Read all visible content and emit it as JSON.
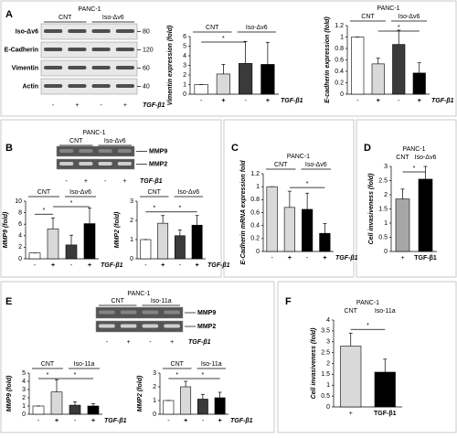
{
  "panel_labels": [
    "A",
    "B",
    "C",
    "D",
    "E",
    "F"
  ],
  "blots": [
    {
      "title": "PANC-1",
      "groups": [
        "CNT",
        "Iso-Δv6"
      ],
      "rows": [
        "Iso-Δv6",
        "E-Cadherin",
        "Vimentin",
        "Actin"
      ],
      "markers": [
        "80",
        "120",
        "60",
        "40"
      ],
      "lanes": [
        "-",
        "+",
        "-",
        "+"
      ],
      "treatment": "TGF-β1"
    },
    {
      "title": "PANC-1",
      "groups": [
        "CNT",
        "Iso-Δv6"
      ],
      "rows": [
        "MMP9",
        "MMP2"
      ],
      "lanes": [
        "-",
        "+",
        "-",
        "+"
      ],
      "treatment": "TGF-β1"
    },
    {
      "title": "PANC-1",
      "groups": [
        "CNT",
        "Iso-11a"
      ],
      "rows": [
        "MMP9",
        "MMP2"
      ],
      "lanes": [
        "-",
        "+",
        "-",
        "+"
      ],
      "treatment": "TGF-β1"
    }
  ],
  "chart_data": [
    {
      "type": "bar",
      "ylabel": "Vimentin expression (fold)",
      "groups": [
        "CNT",
        "Iso-Δv6"
      ],
      "categories": [
        "-",
        "+",
        "-",
        "+"
      ],
      "x_label": "TGF-β1",
      "annotations": [
        "*"
      ],
      "colors": [
        "#ffffff",
        "#d9d9d9",
        "#3a3a3a",
        "#000000"
      ],
      "series": [
        {
          "values": [
            1,
            2.1,
            3.2,
            3.1
          ],
          "errors": [
            0,
            1.0,
            2.3,
            2.3
          ]
        }
      ],
      "ylim": [
        0,
        6
      ],
      "yticks": [
        0,
        1,
        2,
        3,
        4,
        5,
        6
      ]
    },
    {
      "type": "bar",
      "title": "PANC-1",
      "ylabel": "E-cadherin expression (fold)",
      "groups": [
        "CNT",
        "Iso-Δv6"
      ],
      "categories": [
        "-",
        "+",
        "-",
        "+"
      ],
      "x_label": "TGF-β1",
      "annotations": [
        "*"
      ],
      "colors": [
        "#ffffff",
        "#d9d9d9",
        "#3a3a3a",
        "#000000"
      ],
      "series": [
        {
          "values": [
            1,
            0.53,
            0.87,
            0.37
          ],
          "errors": [
            0,
            0.1,
            0.25,
            0.18
          ]
        }
      ],
      "ylim": [
        0,
        1.2
      ],
      "yticks": [
        0,
        0.2,
        0.4,
        0.6,
        0.8,
        1,
        1.2
      ]
    },
    {
      "type": "bar",
      "ylabel": "MMP9 (fold)",
      "groups": [
        "CNT",
        "Iso-Δv6"
      ],
      "categories": [
        "-",
        "+",
        "-",
        "+"
      ],
      "x_label": "TGF-β1",
      "annotations": [
        "*",
        "*"
      ],
      "colors": [
        "#ffffff",
        "#d9d9d9",
        "#3a3a3a",
        "#000000"
      ],
      "series": [
        {
          "values": [
            1,
            5.2,
            2.4,
            6.1
          ],
          "errors": [
            0,
            1.9,
            1.7,
            2.7
          ]
        }
      ],
      "ylim": [
        0,
        10
      ],
      "yticks": [
        0,
        2,
        4,
        6,
        8,
        10
      ]
    },
    {
      "type": "bar",
      "ylabel": "MMP2 (fold)",
      "groups": [
        "CNT",
        "Iso-Δv6"
      ],
      "categories": [
        "-",
        "+",
        "-",
        "+"
      ],
      "x_label": "TGF-β1",
      "annotations": [
        "*",
        "*"
      ],
      "colors": [
        "#ffffff",
        "#d9d9d9",
        "#3a3a3a",
        "#000000"
      ],
      "series": [
        {
          "values": [
            1,
            1.85,
            1.2,
            1.75
          ],
          "errors": [
            0,
            0.4,
            0.3,
            0.5
          ]
        }
      ],
      "ylim": [
        0,
        3
      ],
      "yticks": [
        0,
        1,
        2,
        3
      ]
    },
    {
      "type": "bar",
      "title": "PANC-1",
      "ylabel": "E-Cadherin mRNA expression fold",
      "groups": [
        "CNT",
        "Iso-Δv6"
      ],
      "categories": [
        "-",
        "+",
        "-",
        "+"
      ],
      "x_label": "TGF-β1",
      "annotations": [
        "*"
      ],
      "colors": [
        "#d9d9d9",
        "#d9d9d9",
        "#000000",
        "#000000"
      ],
      "series": [
        {
          "values": [
            1,
            0.68,
            0.65,
            0.28
          ],
          "errors": [
            0,
            0.25,
            0.25,
            0.15
          ]
        }
      ],
      "ylim": [
        0,
        1.2
      ],
      "yticks": [
        0,
        0.2,
        0.4,
        0.6,
        0.8,
        1,
        1.2
      ]
    },
    {
      "type": "bar",
      "title": "PANC-1",
      "ylabel": "Cell invasiveness (fold)",
      "groups": [
        "CNT",
        "Iso-Δv6"
      ],
      "categories": [
        "+",
        "TGF-β1"
      ],
      "annotations": [
        "*"
      ],
      "colors": [
        "#a6a6a6",
        "#000000"
      ],
      "series": [
        {
          "values": [
            1.85,
            2.55
          ],
          "errors": [
            0.35,
            0.45
          ]
        }
      ],
      "ylim": [
        0,
        3
      ],
      "yticks": [
        0,
        0.5,
        1,
        1.5,
        2,
        2.5,
        3
      ]
    },
    {
      "type": "bar",
      "ylabel": "MMP9 (fold)",
      "groups": [
        "CNT",
        "Iso-11a"
      ],
      "categories": [
        "-",
        "+",
        "-",
        "+"
      ],
      "x_label": "TGF-β1",
      "annotations": [
        "*",
        "*"
      ],
      "colors": [
        "#ffffff",
        "#d9d9d9",
        "#3a3a3a",
        "#000000"
      ],
      "series": [
        {
          "values": [
            1,
            2.7,
            1.1,
            1.0
          ],
          "errors": [
            0,
            1.5,
            0.4,
            0.3
          ]
        }
      ],
      "ylim": [
        0,
        5
      ],
      "yticks": [
        0,
        1,
        2,
        3,
        4,
        5
      ]
    },
    {
      "type": "bar",
      "ylabel": "MMP2 (fold)",
      "groups": [
        "CNT",
        "Iso-11a"
      ],
      "categories": [
        "-",
        "+",
        "-",
        "+"
      ],
      "x_label": "TGF-β1",
      "annotations": [
        "*",
        "*"
      ],
      "colors": [
        "#ffffff",
        "#d9d9d9",
        "#3a3a3a",
        "#000000"
      ],
      "series": [
        {
          "values": [
            1,
            2.0,
            1.1,
            1.2
          ],
          "errors": [
            0,
            0.4,
            0.35,
            0.4
          ]
        }
      ],
      "ylim": [
        0,
        3
      ],
      "yticks": [
        0,
        1,
        2,
        3
      ]
    },
    {
      "type": "bar",
      "title": "PANC-1",
      "ylabel": "Cell invasiveness (fold)",
      "groups": [
        "CNT",
        "Iso-11a"
      ],
      "categories": [
        "+",
        "TGF-β1"
      ],
      "annotations": [
        "*"
      ],
      "colors": [
        "#d9d9d9",
        "#000000"
      ],
      "series": [
        {
          "values": [
            2.8,
            1.6
          ],
          "errors": [
            0.6,
            0.6
          ]
        }
      ],
      "ylim": [
        0,
        4
      ],
      "yticks": [
        0,
        0.5,
        1,
        1.5,
        2,
        2.5,
        3,
        3.5,
        4
      ]
    }
  ]
}
